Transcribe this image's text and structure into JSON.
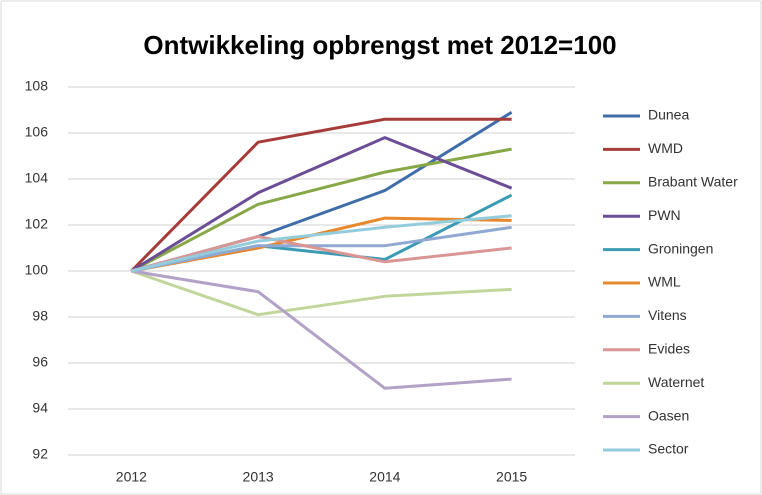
{
  "chart_data": {
    "type": "line",
    "title": "Ontwikkeling opbrengst met 2012=100",
    "categories": [
      "2012",
      "2013",
      "2014",
      "2015"
    ],
    "ylim": [
      92,
      108
    ],
    "yticks": [
      92,
      94,
      96,
      98,
      100,
      102,
      104,
      106,
      108
    ],
    "grid": true,
    "legend": "right",
    "series": [
      {
        "name": "Dunea",
        "color": "#3e6daa",
        "values": [
          100,
          101.5,
          103.5,
          106.9
        ]
      },
      {
        "name": "WMD",
        "color": "#a63c39",
        "values": [
          100,
          105.6,
          106.6,
          106.6
        ]
      },
      {
        "name": "Brabant Water",
        "color": "#88a847",
        "values": [
          100,
          102.9,
          104.3,
          105.3
        ]
      },
      {
        "name": "PWN",
        "color": "#6b4c96",
        "values": [
          100,
          103.4,
          105.8,
          103.6
        ]
      },
      {
        "name": "Groningen",
        "color": "#3a9bb2",
        "values": [
          100,
          101.1,
          100.5,
          103.3
        ]
      },
      {
        "name": "WML",
        "color": "#e8882c",
        "values": [
          100,
          101.0,
          102.3,
          102.2
        ]
      },
      {
        "name": "Vitens",
        "color": "#90a9d2",
        "values": [
          100,
          101.1,
          101.1,
          101.9
        ]
      },
      {
        "name": "Evides",
        "color": "#d99694",
        "values": [
          100,
          101.5,
          100.4,
          101.0
        ]
      },
      {
        "name": "Waternet",
        "color": "#c2d69b",
        "values": [
          100,
          98.1,
          98.9,
          99.2
        ]
      },
      {
        "name": "Oasen",
        "color": "#b2a2c7",
        "values": [
          100,
          99.1,
          94.9,
          95.3
        ]
      },
      {
        "name": "Sector",
        "color": "#93cddd",
        "values": [
          100,
          101.3,
          101.9,
          102.4
        ]
      }
    ]
  }
}
